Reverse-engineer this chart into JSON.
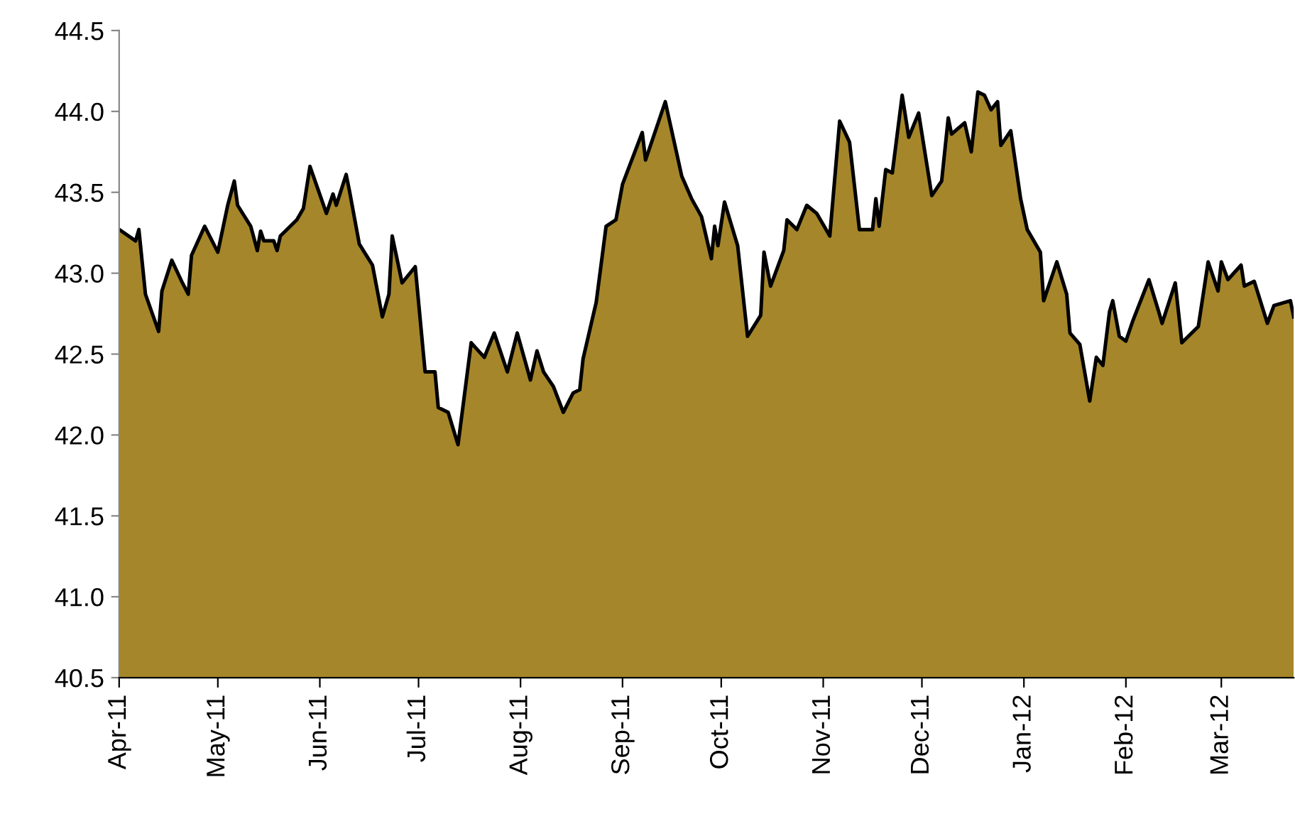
{
  "chart_data": {
    "type": "area",
    "x": [
      "2011-04-01",
      "2011-04-06",
      "2011-04-07",
      "2011-04-09",
      "2011-04-13",
      "2011-04-14",
      "2011-04-17",
      "2011-04-20",
      "2011-04-22",
      "2011-04-23",
      "2011-04-27",
      "2011-05-01",
      "2011-05-04",
      "2011-05-06",
      "2011-05-07",
      "2011-05-11",
      "2011-05-13",
      "2011-05-14",
      "2011-05-15",
      "2011-05-18",
      "2011-05-19",
      "2011-05-20",
      "2011-05-25",
      "2011-05-27",
      "2011-05-29",
      "2011-06-03",
      "2011-06-05",
      "2011-06-06",
      "2011-06-09",
      "2011-06-10",
      "2011-06-13",
      "2011-06-17",
      "2011-06-20",
      "2011-06-22",
      "2011-06-23",
      "2011-06-26",
      "2011-06-30",
      "2011-07-03",
      "2011-07-06",
      "2011-07-07",
      "2011-07-10",
      "2011-07-13",
      "2011-07-17",
      "2011-07-21",
      "2011-07-24",
      "2011-07-28",
      "2011-07-31",
      "2011-08-04",
      "2011-08-06",
      "2011-08-08",
      "2011-08-11",
      "2011-08-14",
      "2011-08-17",
      "2011-08-19",
      "2011-08-20",
      "2011-08-24",
      "2011-08-27",
      "2011-08-30",
      "2011-09-01",
      "2011-09-07",
      "2011-09-08",
      "2011-09-14",
      "2011-09-19",
      "2011-09-22",
      "2011-09-25",
      "2011-09-28",
      "2011-09-29",
      "2011-09-30",
      "2011-10-02",
      "2011-10-06",
      "2011-10-09",
      "2011-10-13",
      "2011-10-14",
      "2011-10-16",
      "2011-10-20",
      "2011-10-21",
      "2011-10-24",
      "2011-10-27",
      "2011-10-30",
      "2011-11-03",
      "2011-11-06",
      "2011-11-09",
      "2011-11-12",
      "2011-11-16",
      "2011-11-17",
      "2011-11-18",
      "2011-11-20",
      "2011-11-22",
      "2011-11-25",
      "2011-11-27",
      "2011-11-30",
      "2011-12-04",
      "2011-12-07",
      "2011-12-09",
      "2011-12-10",
      "2011-12-14",
      "2011-12-16",
      "2011-12-18",
      "2011-12-20",
      "2011-12-22",
      "2011-12-24",
      "2011-12-25",
      "2011-12-28",
      "2011-12-31",
      "2012-01-02",
      "2012-01-06",
      "2012-01-07",
      "2012-01-11",
      "2012-01-14",
      "2012-01-15",
      "2012-01-18",
      "2012-01-21",
      "2012-01-23",
      "2012-01-25",
      "2012-01-27",
      "2012-01-28",
      "2012-01-30",
      "2012-02-01",
      "2012-02-03",
      "2012-02-08",
      "2012-02-11",
      "2012-02-12",
      "2012-02-16",
      "2012-02-18",
      "2012-02-23",
      "2012-02-26",
      "2012-02-29",
      "2012-03-01",
      "2012-03-03",
      "2012-03-07",
      "2012-03-08",
      "2012-03-11",
      "2012-03-15",
      "2012-03-17",
      "2012-03-22",
      "2012-03-23"
    ],
    "series": [
      {
        "color": "#a5862a",
        "values": [
          43.27,
          43.2,
          43.27,
          42.87,
          42.64,
          42.89,
          43.08,
          42.95,
          42.87,
          43.11,
          43.29,
          43.13,
          43.42,
          43.57,
          43.42,
          43.29,
          43.14,
          43.26,
          43.2,
          43.2,
          43.14,
          43.23,
          43.33,
          43.4,
          43.66,
          43.37,
          43.49,
          43.42,
          43.61,
          43.51,
          43.18,
          43.05,
          42.73,
          42.87,
          43.23,
          42.94,
          43.04,
          42.39,
          42.39,
          42.17,
          42.14,
          41.94,
          42.57,
          42.48,
          42.63,
          42.39,
          42.63,
          42.34,
          42.52,
          42.39,
          42.3,
          42.14,
          42.26,
          42.28,
          42.47,
          42.82,
          43.29,
          43.33,
          43.55,
          43.87,
          43.7,
          44.06,
          43.6,
          43.46,
          43.35,
          43.09,
          43.29,
          43.17,
          43.44,
          43.17,
          42.61,
          42.74,
          43.13,
          42.92,
          43.14,
          43.33,
          43.27,
          43.42,
          43.37,
          43.23,
          43.94,
          43.81,
          43.27,
          43.27,
          43.46,
          43.29,
          43.64,
          43.62,
          44.1,
          43.84,
          43.99,
          43.48,
          43.57,
          43.96,
          43.86,
          43.93,
          43.75,
          44.12,
          44.1,
          44.01,
          44.06,
          43.79,
          43.88,
          43.46,
          43.27,
          43.13,
          42.83,
          43.07,
          42.87,
          42.63,
          42.56,
          42.21,
          42.48,
          42.43,
          42.76,
          42.83,
          42.61,
          42.58,
          42.7,
          42.96,
          42.76,
          42.69,
          42.94,
          42.57,
          42.67,
          43.07,
          42.89,
          43.07,
          42.96,
          43.05,
          42.92,
          42.95,
          42.69,
          42.8,
          42.83,
          42.73
        ]
      }
    ],
    "xlim": [
      "2011-04-01",
      "2012-03-23"
    ],
    "xticks": [
      {
        "value": "2011-04-01",
        "label": "Apr-11"
      },
      {
        "value": "2011-05-01",
        "label": "May-11"
      },
      {
        "value": "2011-06-01",
        "label": "Jun-11"
      },
      {
        "value": "2011-07-01",
        "label": "Jul-11"
      },
      {
        "value": "2011-08-01",
        "label": "Aug-11"
      },
      {
        "value": "2011-09-01",
        "label": "Sep-11"
      },
      {
        "value": "2011-10-01",
        "label": "Oct-11"
      },
      {
        "value": "2011-11-01",
        "label": "Nov-11"
      },
      {
        "value": "2011-12-01",
        "label": "Dec-11"
      },
      {
        "value": "2012-01-01",
        "label": "Jan-12"
      },
      {
        "value": "2012-02-01",
        "label": "Feb-12"
      },
      {
        "value": "2012-03-01",
        "label": "Mar-12"
      }
    ],
    "ylim": [
      40.5,
      44.5
    ],
    "yticks": [
      {
        "value": 40.5,
        "label": "40.5"
      },
      {
        "value": 41,
        "label": "41.0"
      },
      {
        "value": 41.5,
        "label": "41.5"
      },
      {
        "value": 42,
        "label": "42.0"
      },
      {
        "value": 42.5,
        "label": "42.5"
      },
      {
        "value": 43,
        "label": "43.0"
      },
      {
        "value": 43.5,
        "label": "43.5"
      },
      {
        "value": 44,
        "label": "44.0"
      },
      {
        "value": 44.5,
        "label": "44.5"
      }
    ],
    "grid": false,
    "legend": false,
    "marker": "none",
    "line_style": "solid"
  }
}
